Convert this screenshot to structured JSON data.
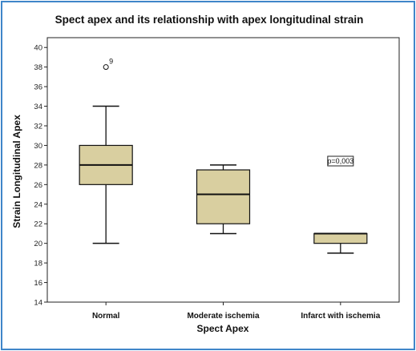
{
  "chart_data": {
    "type": "box",
    "title": "Spect apex and its relationship with apex longitudinal strain",
    "xlabel": "Spect Apex",
    "ylabel": "Strain Longitudinal  Apex",
    "ylim": [
      14,
      41
    ],
    "yticks": [
      14,
      16,
      18,
      20,
      22,
      24,
      26,
      28,
      30,
      32,
      34,
      36,
      38,
      40
    ],
    "grid": false,
    "box_color": "#d9cfa0",
    "categories": [
      "Normal",
      "Moderate ischemia",
      "Infarct with ischemia"
    ],
    "boxes": [
      {
        "min": 20,
        "q1": 26,
        "median": 28,
        "q3": 30,
        "max": 34,
        "outliers": [
          {
            "value": 38,
            "label": "9"
          }
        ]
      },
      {
        "min": 21,
        "q1": 22,
        "median": 25,
        "q3": 27.5,
        "max": 28,
        "outliers": []
      },
      {
        "min": 19,
        "q1": 20,
        "median": 21,
        "q3": 21,
        "max": 21,
        "outliers": []
      }
    ],
    "annotation": {
      "text": "p=0,003",
      "category": "Infarct with ischemia",
      "value": 28.4
    }
  }
}
